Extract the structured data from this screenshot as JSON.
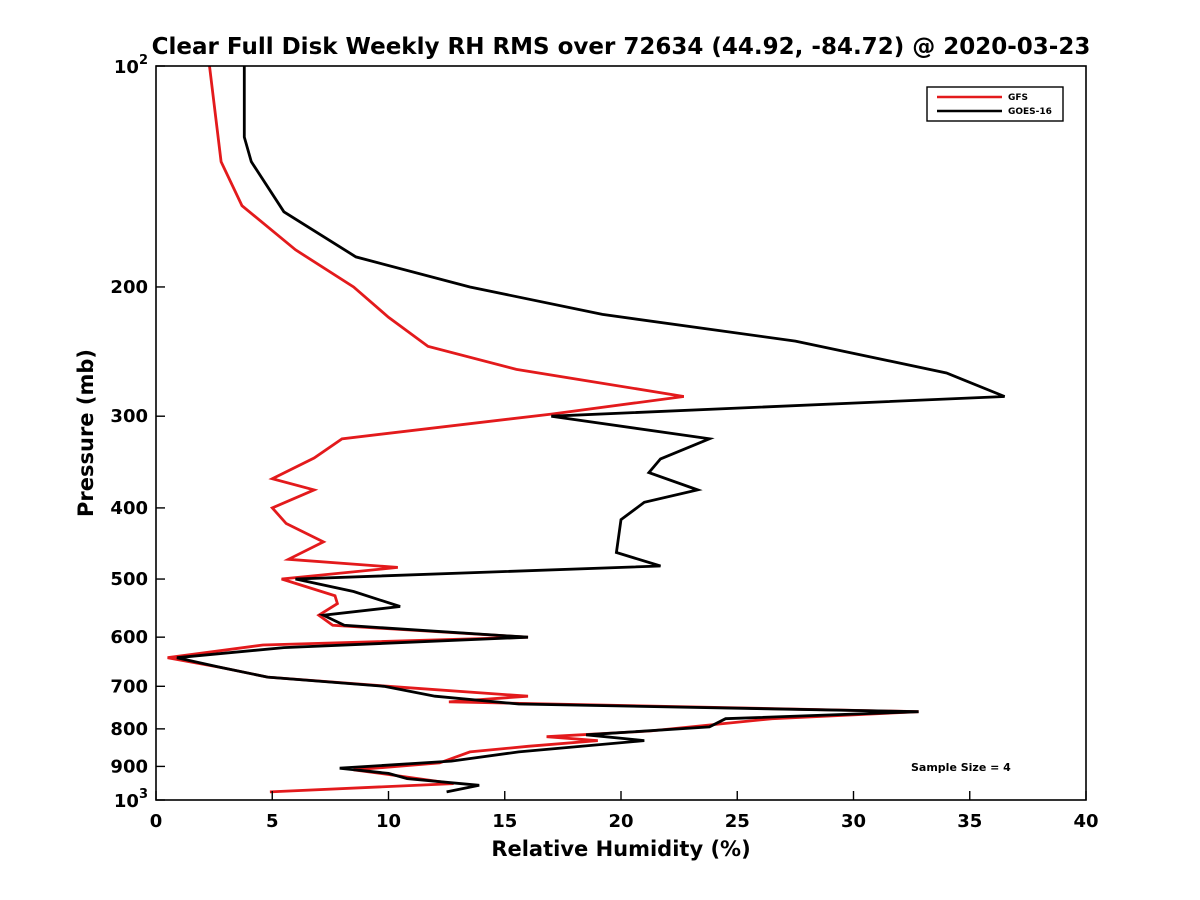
{
  "chart_data": {
    "type": "line",
    "title": "Clear Full Disk Weekly RH RMS over 72634 (44.92, -84.72) @ 2020-03-23",
    "xlabel": "Relative Humidity (%)",
    "ylabel": "Pressure (mb)",
    "xlim": [
      0,
      40
    ],
    "ylim": [
      100,
      1000
    ],
    "yscale": "log",
    "y_reversed": true,
    "grid": false,
    "legend_position": "top-right",
    "x_ticks": [
      0,
      5,
      10,
      15,
      20,
      25,
      30,
      35,
      40
    ],
    "x_tick_labels": [
      "0",
      "5",
      "10",
      "15",
      "20",
      "25",
      "30",
      "35",
      "40"
    ],
    "y_ticks": [
      200,
      300,
      400,
      500,
      600,
      700,
      800,
      900
    ],
    "y_tick_labels": [
      "200",
      "300",
      "400",
      "500",
      "600",
      "700",
      "800",
      "900"
    ],
    "y_pow_ticks": [
      {
        "value": 100,
        "base": "10",
        "exp": "2"
      },
      {
        "value": 1000,
        "base": "10",
        "exp": "3"
      }
    ],
    "annotation": "Sample Size = 4",
    "series": [
      {
        "name": "GFS",
        "color": "#e31a1c",
        "points": [
          [
            2.3,
            100
          ],
          [
            2.8,
            135
          ],
          [
            3.7,
            155
          ],
          [
            6.0,
            178
          ],
          [
            8.5,
            200
          ],
          [
            10.0,
            220
          ],
          [
            11.7,
            241
          ],
          [
            15.5,
            259
          ],
          [
            22.7,
            282
          ],
          [
            17.0,
            298
          ],
          [
            8.0,
            322
          ],
          [
            6.8,
            342
          ],
          [
            5.0,
            365
          ],
          [
            6.8,
            378
          ],
          [
            5.0,
            400
          ],
          [
            5.6,
            420
          ],
          [
            7.2,
            445
          ],
          [
            5.7,
            470
          ],
          [
            10.4,
            482
          ],
          [
            5.4,
            500
          ],
          [
            7.7,
            527
          ],
          [
            7.8,
            540
          ],
          [
            7.0,
            560
          ],
          [
            7.6,
            578
          ],
          [
            16.0,
            600
          ],
          [
            4.6,
            615
          ],
          [
            0.5,
            640
          ],
          [
            2.8,
            660
          ],
          [
            4.8,
            680
          ],
          [
            10.0,
            700
          ],
          [
            16.0,
            722
          ],
          [
            12.6,
            735
          ],
          [
            32.8,
            758
          ],
          [
            26.5,
            775
          ],
          [
            21.3,
            805
          ],
          [
            16.8,
            820
          ],
          [
            19.0,
            830
          ],
          [
            16.0,
            845
          ],
          [
            13.5,
            860
          ],
          [
            12.2,
            890
          ],
          [
            8.5,
            910
          ],
          [
            10.2,
            925
          ],
          [
            12.8,
            950
          ],
          [
            4.9,
            975
          ]
        ]
      },
      {
        "name": "GOES-16",
        "color": "#000000",
        "points": [
          [
            3.8,
            100
          ],
          [
            3.8,
            125
          ],
          [
            4.1,
            135
          ],
          [
            5.5,
            158
          ],
          [
            8.6,
            182
          ],
          [
            13.5,
            200
          ],
          [
            19.2,
            218
          ],
          [
            27.5,
            237
          ],
          [
            34.0,
            262
          ],
          [
            36.5,
            282
          ],
          [
            17.0,
            300
          ],
          [
            23.8,
            322
          ],
          [
            21.7,
            343
          ],
          [
            21.2,
            358
          ],
          [
            23.3,
            378
          ],
          [
            21.0,
            393
          ],
          [
            20.0,
            415
          ],
          [
            19.8,
            460
          ],
          [
            21.7,
            480
          ],
          [
            6.0,
            500
          ],
          [
            8.5,
            520
          ],
          [
            10.5,
            545
          ],
          [
            7.2,
            560
          ],
          [
            8.1,
            578
          ],
          [
            16.0,
            600
          ],
          [
            5.5,
            620
          ],
          [
            0.9,
            640
          ],
          [
            2.8,
            660
          ],
          [
            4.8,
            680
          ],
          [
            9.8,
            700
          ],
          [
            12.0,
            722
          ],
          [
            15.6,
            740
          ],
          [
            32.8,
            758
          ],
          [
            24.5,
            775
          ],
          [
            23.8,
            795
          ],
          [
            18.5,
            815
          ],
          [
            21.0,
            830
          ],
          [
            15.6,
            860
          ],
          [
            12.7,
            885
          ],
          [
            7.9,
            905
          ],
          [
            10.0,
            920
          ],
          [
            10.8,
            935
          ],
          [
            13.9,
            955
          ],
          [
            12.5,
            975
          ]
        ]
      }
    ]
  }
}
